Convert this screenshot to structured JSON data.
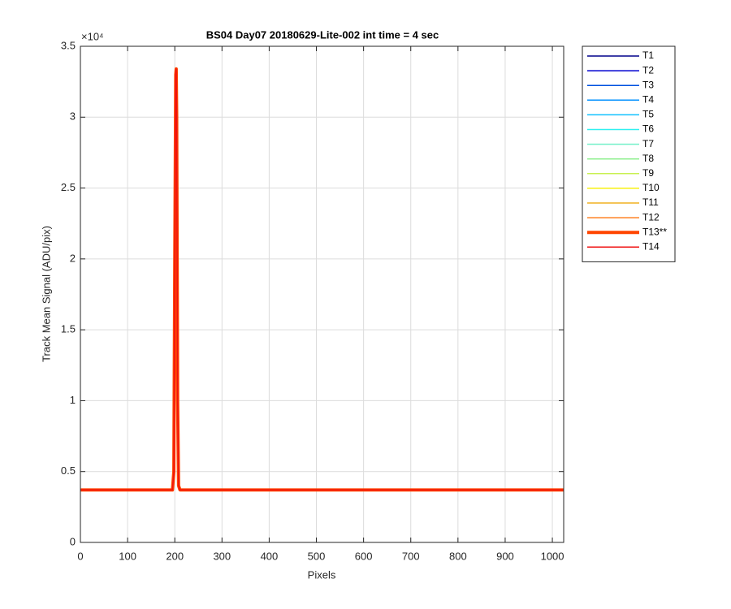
{
  "chart_data": {
    "type": "line",
    "title": "BS04 Day07 20180629-Lite-002 int time = 4 sec",
    "x_label": "Pixels",
    "y_label": "Track Mean Signal (ADU/pix)",
    "y_multiplier": "×10⁴",
    "x": [
      1,
      195,
      198,
      200,
      202,
      203,
      204,
      206,
      208,
      211,
      1024
    ],
    "series": [
      {
        "name": "T1",
        "color": "#00008c",
        "width": 1.5,
        "values": [
          0.37,
          0.37,
          0.5,
          2.0,
          3.3,
          3.34,
          3.0,
          1.0,
          0.4,
          0.37,
          0.37
        ]
      },
      {
        "name": "T2",
        "color": "#0000d0",
        "width": 1.5,
        "values": [
          0.37,
          0.37,
          0.5,
          2.0,
          3.3,
          3.34,
          3.0,
          1.0,
          0.4,
          0.37,
          0.37
        ]
      },
      {
        "name": "T3",
        "color": "#0050e0",
        "width": 1.5,
        "values": [
          0.37,
          0.37,
          0.5,
          2.0,
          3.3,
          3.34,
          3.0,
          1.0,
          0.4,
          0.37,
          0.37
        ]
      },
      {
        "name": "T4",
        "color": "#0090ff",
        "width": 1.5,
        "values": [
          0.37,
          0.37,
          0.5,
          2.0,
          3.3,
          3.34,
          3.0,
          1.0,
          0.4,
          0.37,
          0.37
        ]
      },
      {
        "name": "T5",
        "color": "#10c0ff",
        "width": 1.5,
        "values": [
          0.37,
          0.37,
          0.5,
          2.0,
          3.3,
          3.34,
          3.0,
          1.0,
          0.4,
          0.37,
          0.37
        ]
      },
      {
        "name": "T6",
        "color": "#30f0f0",
        "width": 1.5,
        "values": [
          0.37,
          0.37,
          0.5,
          2.0,
          3.3,
          3.34,
          3.0,
          1.0,
          0.4,
          0.37,
          0.37
        ]
      },
      {
        "name": "T7",
        "color": "#70f0c8",
        "width": 1.5,
        "values": [
          0.37,
          0.37,
          0.5,
          2.0,
          3.3,
          3.34,
          3.0,
          1.0,
          0.4,
          0.37,
          0.37
        ]
      },
      {
        "name": "T8",
        "color": "#90f090",
        "width": 1.5,
        "values": [
          0.37,
          0.37,
          0.5,
          2.0,
          3.3,
          3.34,
          3.0,
          1.0,
          0.4,
          0.37,
          0.37
        ]
      },
      {
        "name": "T9",
        "color": "#c8f050",
        "width": 1.5,
        "values": [
          0.37,
          0.37,
          0.5,
          2.0,
          3.3,
          3.34,
          3.0,
          1.0,
          0.4,
          0.37,
          0.37
        ]
      },
      {
        "name": "T10",
        "color": "#f8f010",
        "width": 1.5,
        "values": [
          0.37,
          0.37,
          0.5,
          2.0,
          3.3,
          3.34,
          3.0,
          1.0,
          0.4,
          0.37,
          0.37
        ]
      },
      {
        "name": "T11",
        "color": "#f0b020",
        "width": 1.5,
        "values": [
          0.37,
          0.37,
          0.5,
          2.0,
          3.3,
          3.34,
          3.0,
          1.0,
          0.4,
          0.37,
          0.37
        ]
      },
      {
        "name": "T12",
        "color": "#ff8020",
        "width": 1.5,
        "values": [
          0.37,
          0.37,
          0.5,
          2.0,
          3.3,
          3.34,
          3.0,
          1.0,
          0.4,
          0.37,
          0.37
        ]
      },
      {
        "name": "T13**",
        "color": "#ff4500",
        "width": 4,
        "values": [
          0.37,
          0.37,
          0.5,
          2.0,
          3.3,
          3.34,
          3.0,
          1.0,
          0.4,
          0.37,
          0.37
        ]
      },
      {
        "name": "T14",
        "color": "#f01010",
        "width": 1.5,
        "values": [
          0.37,
          0.37,
          0.5,
          2.0,
          3.3,
          3.34,
          3.0,
          1.0,
          0.4,
          0.37,
          0.37
        ]
      }
    ],
    "xlim": [
      0,
      1024
    ],
    "xticks": [
      0,
      100,
      200,
      300,
      400,
      500,
      600,
      700,
      800,
      900,
      1000
    ],
    "ylim": [
      0,
      3.5
    ],
    "yticks": [
      0,
      0.5,
      1,
      1.5,
      2,
      2.5,
      3,
      3.5
    ],
    "grid": true,
    "legend": "outside-right"
  }
}
